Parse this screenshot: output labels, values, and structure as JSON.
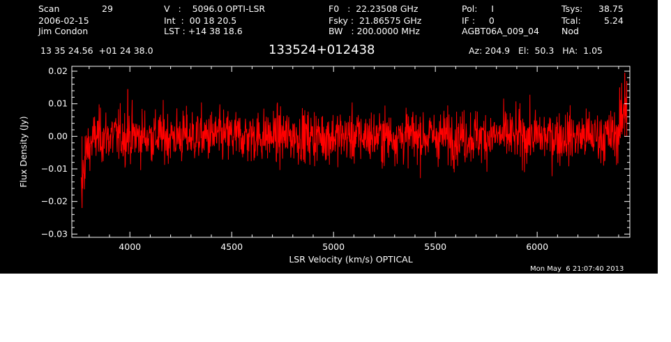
{
  "header": {
    "scan_label": "Scan",
    "scan_number": "29",
    "date": "2006-02-15",
    "observer": "Jim Condon",
    "v_line": "V   :    5096.0 OPTI-LSR",
    "int_line": "Int  :  00 18 20.5",
    "lst_line": "LST : +14 38 18.6",
    "f0_line": "F0   :  22.23508 GHz",
    "fsky_line": "Fsky :  21.86575 GHz",
    "bw_line": "BW   : 200.0000 MHz",
    "pol_line": "Pol:     I",
    "if_line": "IF :     0",
    "project": "AGBT06A_009_04",
    "tsys_label": "Tsys:",
    "tsys_value": "38.75",
    "tcal_label": "Tcal:",
    "tcal_value": "5.24",
    "mode": "Nod",
    "coords": "13 35 24.56  +01 24 38.0",
    "source": "133524+012438",
    "azelha": "Az: 204.9   El:  50.3   HA:  1.05"
  },
  "footer": {
    "timestamp": "Mon May  6 21:07:40 2013"
  },
  "colors": {
    "background": "#000000",
    "axes": "#ffffff",
    "trace": "#ff0000"
  },
  "chart_data": {
    "type": "line",
    "xlabel": "LSR Velocity (km/s) OPTICAL",
    "ylabel": "Flux Density (Jy)",
    "xlim": [
      3715,
      6455
    ],
    "ylim": [
      -0.031,
      0.0215
    ],
    "x_ticks": [
      4000,
      4500,
      5000,
      5500,
      6000
    ],
    "x_tick_labels": [
      "4000",
      "4500",
      "5000",
      "5500",
      "6000"
    ],
    "y_ticks": [
      -0.03,
      -0.02,
      -0.01,
      0.0,
      0.01,
      0.02
    ],
    "y_tick_labels": [
      "−0.03",
      "−0.02",
      "−0.01",
      "0.00",
      "0.01",
      "0.02"
    ],
    "grid": false,
    "series": [
      {
        "color": "#ff0000",
        "x_range": [
          3760,
          6440
        ],
        "noise_rms_jy": 0.0045,
        "baseline_jy": 0.0,
        "features": [
          {
            "x": 3765,
            "y": -0.022
          },
          {
            "x": 3780,
            "y": -0.013
          },
          {
            "x": 3800,
            "y": -0.006
          },
          {
            "x": 3990,
            "y": 0.0145
          },
          {
            "x": 6405,
            "y": 0.015
          },
          {
            "x": 6430,
            "y": 0.0195
          },
          {
            "x": 6440,
            "y": 0.017
          }
        ]
      }
    ]
  }
}
